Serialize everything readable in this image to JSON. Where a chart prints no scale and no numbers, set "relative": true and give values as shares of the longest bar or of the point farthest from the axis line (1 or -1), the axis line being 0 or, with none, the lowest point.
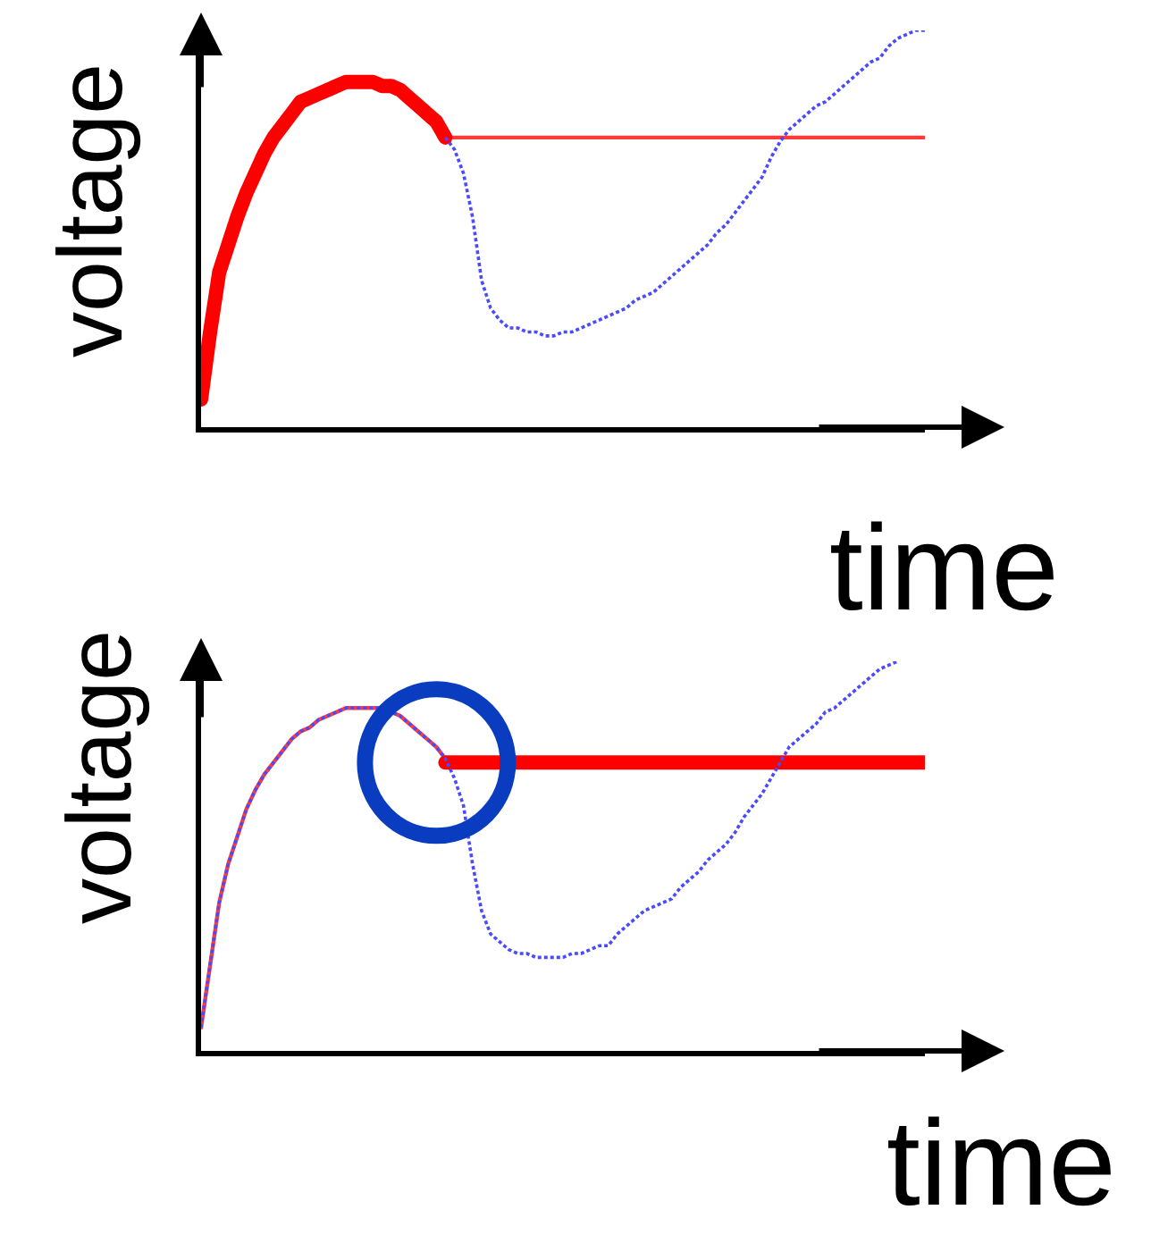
{
  "chart_data": [
    {
      "type": "line",
      "relative": true,
      "xlabel": "time",
      "ylabel": "voltage",
      "categories": [
        null,
        null,
        null,
        null,
        null,
        null,
        null,
        null,
        null,
        null,
        null,
        null,
        null,
        null,
        null,
        null,
        null,
        null,
        null,
        null,
        null,
        null,
        null,
        null,
        null,
        null,
        null,
        null,
        null,
        null,
        null,
        null,
        null,
        null,
        null,
        null,
        null,
        null,
        null,
        null,
        null,
        null,
        null,
        null,
        null,
        null,
        null,
        null,
        null,
        null,
        null,
        null,
        null,
        null,
        null,
        null,
        null,
        null,
        null,
        null,
        null,
        null,
        null,
        null,
        null,
        null,
        null,
        null,
        null,
        null,
        null,
        null,
        null,
        null,
        null,
        null,
        null,
        null,
        null,
        null,
        null
      ],
      "series": [
        {
          "color": "#ff3a3a",
          "line_style": "solid",
          "values": [
            null,
            null,
            null,
            null,
            null,
            null,
            null,
            null,
            null,
            null,
            null,
            null,
            null,
            null,
            null,
            null,
            null,
            null,
            null,
            null,
            null,
            null,
            null,
            null,
            null,
            null,
            null,
            0.73,
            0.73,
            0.73,
            0.73,
            0.73,
            0.73,
            0.73,
            0.73,
            0.73,
            0.73,
            0.73,
            0.73,
            0.73,
            0.73,
            0.73,
            0.73,
            0.73,
            0.73,
            0.73,
            0.73,
            0.73,
            0.73,
            0.73,
            0.73,
            0.73,
            0.73,
            0.73,
            0.73,
            0.73,
            0.73,
            0.73,
            0.73,
            0.73,
            0.73,
            0.73,
            0.73,
            0.73,
            0.73,
            0.73,
            0.73,
            0.73,
            0.73,
            0.73,
            0.73,
            0.73,
            0.73,
            0.73,
            0.73,
            0.73,
            0.73,
            0.73,
            0.73,
            0.73,
            0.73
          ]
        },
        {
          "color": "#ff0000",
          "line_style": "solid",
          "values": [
            0.07,
            0.24,
            0.39,
            0.46,
            0.53,
            0.59,
            0.64,
            0.69,
            0.73,
            0.76,
            0.79,
            0.82,
            0.83,
            0.84,
            0.85,
            0.86,
            0.87,
            0.87,
            0.87,
            0.87,
            0.86,
            0.86,
            0.85,
            0.83,
            0.81,
            0.79,
            0.77,
            0.73,
            null,
            null,
            null,
            null,
            null,
            null,
            null,
            null,
            null,
            null,
            null,
            null,
            null,
            null,
            null,
            null,
            null,
            null,
            null,
            null,
            null,
            null,
            null,
            null,
            null,
            null,
            null,
            null,
            null,
            null,
            null,
            null,
            null,
            null,
            null,
            null,
            null,
            null,
            null,
            null,
            null,
            null,
            null,
            null,
            null,
            null,
            null,
            null,
            null,
            null,
            null,
            null,
            null
          ]
        },
        {
          "color": "#4a4aff",
          "line_style": "dotted",
          "values": [
            null,
            null,
            null,
            null,
            null,
            null,
            null,
            null,
            null,
            null,
            null,
            null,
            null,
            null,
            null,
            null,
            null,
            null,
            null,
            null,
            null,
            null,
            null,
            null,
            null,
            null,
            null,
            0.73,
            0.7,
            0.64,
            0.53,
            0.37,
            0.3,
            0.27,
            0.25,
            0.25,
            0.24,
            0.24,
            0.23,
            0.23,
            0.24,
            0.24,
            0.25,
            0.26,
            0.27,
            0.28,
            0.29,
            0.3,
            0.32,
            0.33,
            0.34,
            0.36,
            0.38,
            0.4,
            0.42,
            0.44,
            0.46,
            0.49,
            0.51,
            0.54,
            0.57,
            0.6,
            0.63,
            0.68,
            0.72,
            0.75,
            0.77,
            0.79,
            0.81,
            0.82,
            0.84,
            0.86,
            0.88,
            0.9,
            0.92,
            0.93,
            0.96,
            0.98,
            0.99,
            1.0,
            1.0
          ]
        }
      ]
    },
    {
      "type": "line",
      "relative": true,
      "xlabel": "time",
      "ylabel": "voltage",
      "categories": [
        null,
        null,
        null,
        null,
        null,
        null,
        null,
        null,
        null,
        null,
        null,
        null,
        null,
        null,
        null,
        null,
        null,
        null,
        null,
        null,
        null,
        null,
        null,
        null,
        null,
        null,
        null,
        null,
        null,
        null,
        null,
        null,
        null,
        null,
        null,
        null,
        null,
        null,
        null,
        null,
        null,
        null,
        null,
        null,
        null,
        null,
        null,
        null,
        null,
        null,
        null,
        null,
        null,
        null,
        null,
        null,
        null,
        null,
        null,
        null,
        null,
        null,
        null,
        null,
        null,
        null,
        null,
        null,
        null,
        null,
        null,
        null,
        null,
        null,
        null,
        null,
        null,
        null,
        null,
        null,
        null
      ],
      "series": [
        {
          "color": "#ff3a3a",
          "line_style": "solid",
          "values": [
            0.06,
            0.22,
            0.38,
            0.48,
            0.55,
            0.62,
            0.67,
            0.71,
            0.74,
            0.77,
            0.8,
            0.82,
            0.83,
            0.85,
            0.86,
            0.87,
            0.88,
            0.88,
            0.88,
            0.88,
            0.88,
            0.87,
            0.86,
            0.84,
            0.82,
            0.8,
            0.78,
            0.75,
            null,
            null,
            null,
            null,
            null,
            null,
            null,
            null,
            null,
            null,
            null,
            null,
            null,
            null,
            null,
            null,
            null,
            null,
            null,
            null,
            null,
            null,
            null,
            null,
            null,
            null,
            null,
            null,
            null,
            null,
            null,
            null,
            null,
            null,
            null,
            null,
            null,
            null,
            null,
            null,
            null,
            null,
            null,
            null,
            null,
            null,
            null,
            null,
            null,
            null,
            null,
            null,
            null
          ]
        },
        {
          "color": "#ff0000",
          "line_style": "solid",
          "values": [
            null,
            null,
            null,
            null,
            null,
            null,
            null,
            null,
            null,
            null,
            null,
            null,
            null,
            null,
            null,
            null,
            null,
            null,
            null,
            null,
            null,
            null,
            null,
            null,
            null,
            null,
            null,
            0.74,
            0.74,
            0.74,
            0.74,
            0.74,
            0.74,
            0.74,
            0.74,
            0.74,
            0.74,
            0.74,
            0.74,
            0.74,
            0.74,
            0.74,
            0.74,
            0.74,
            0.74,
            0.74,
            0.74,
            0.74,
            0.74,
            0.74,
            0.74,
            0.74,
            0.74,
            0.74,
            0.74,
            0.74,
            0.74,
            0.74,
            0.74,
            0.74,
            0.74,
            0.74,
            0.74,
            0.74,
            0.74,
            0.74,
            0.74,
            0.74,
            0.74,
            0.74,
            0.74,
            0.74,
            0.74,
            0.74,
            0.74,
            0.74,
            0.74,
            0.74,
            0.74,
            0.74,
            0.74
          ]
        },
        {
          "color": "#4a4aff",
          "line_style": "dotted",
          "values": [
            0.06,
            0.22,
            0.38,
            0.48,
            0.55,
            0.62,
            0.67,
            0.71,
            0.74,
            0.77,
            0.8,
            0.82,
            0.83,
            0.85,
            0.86,
            0.87,
            0.88,
            0.88,
            0.88,
            0.88,
            0.88,
            0.87,
            0.86,
            0.84,
            0.82,
            0.8,
            0.78,
            0.75,
            0.7,
            0.63,
            0.48,
            0.36,
            0.3,
            0.28,
            0.26,
            0.25,
            0.25,
            0.24,
            0.24,
            0.24,
            0.24,
            0.25,
            0.25,
            0.26,
            0.27,
            0.27,
            0.3,
            0.32,
            0.34,
            0.36,
            0.37,
            0.38,
            0.39,
            0.42,
            0.44,
            0.46,
            0.49,
            0.51,
            0.53,
            0.56,
            0.6,
            0.63,
            0.66,
            0.7,
            0.74,
            0.78,
            0.8,
            0.82,
            0.84,
            0.87,
            0.88,
            0.9,
            0.92,
            0.94,
            0.96,
            0.98,
            0.99,
            1.0,
            null,
            null,
            null
          ]
        }
      ]
    }
  ]
}
